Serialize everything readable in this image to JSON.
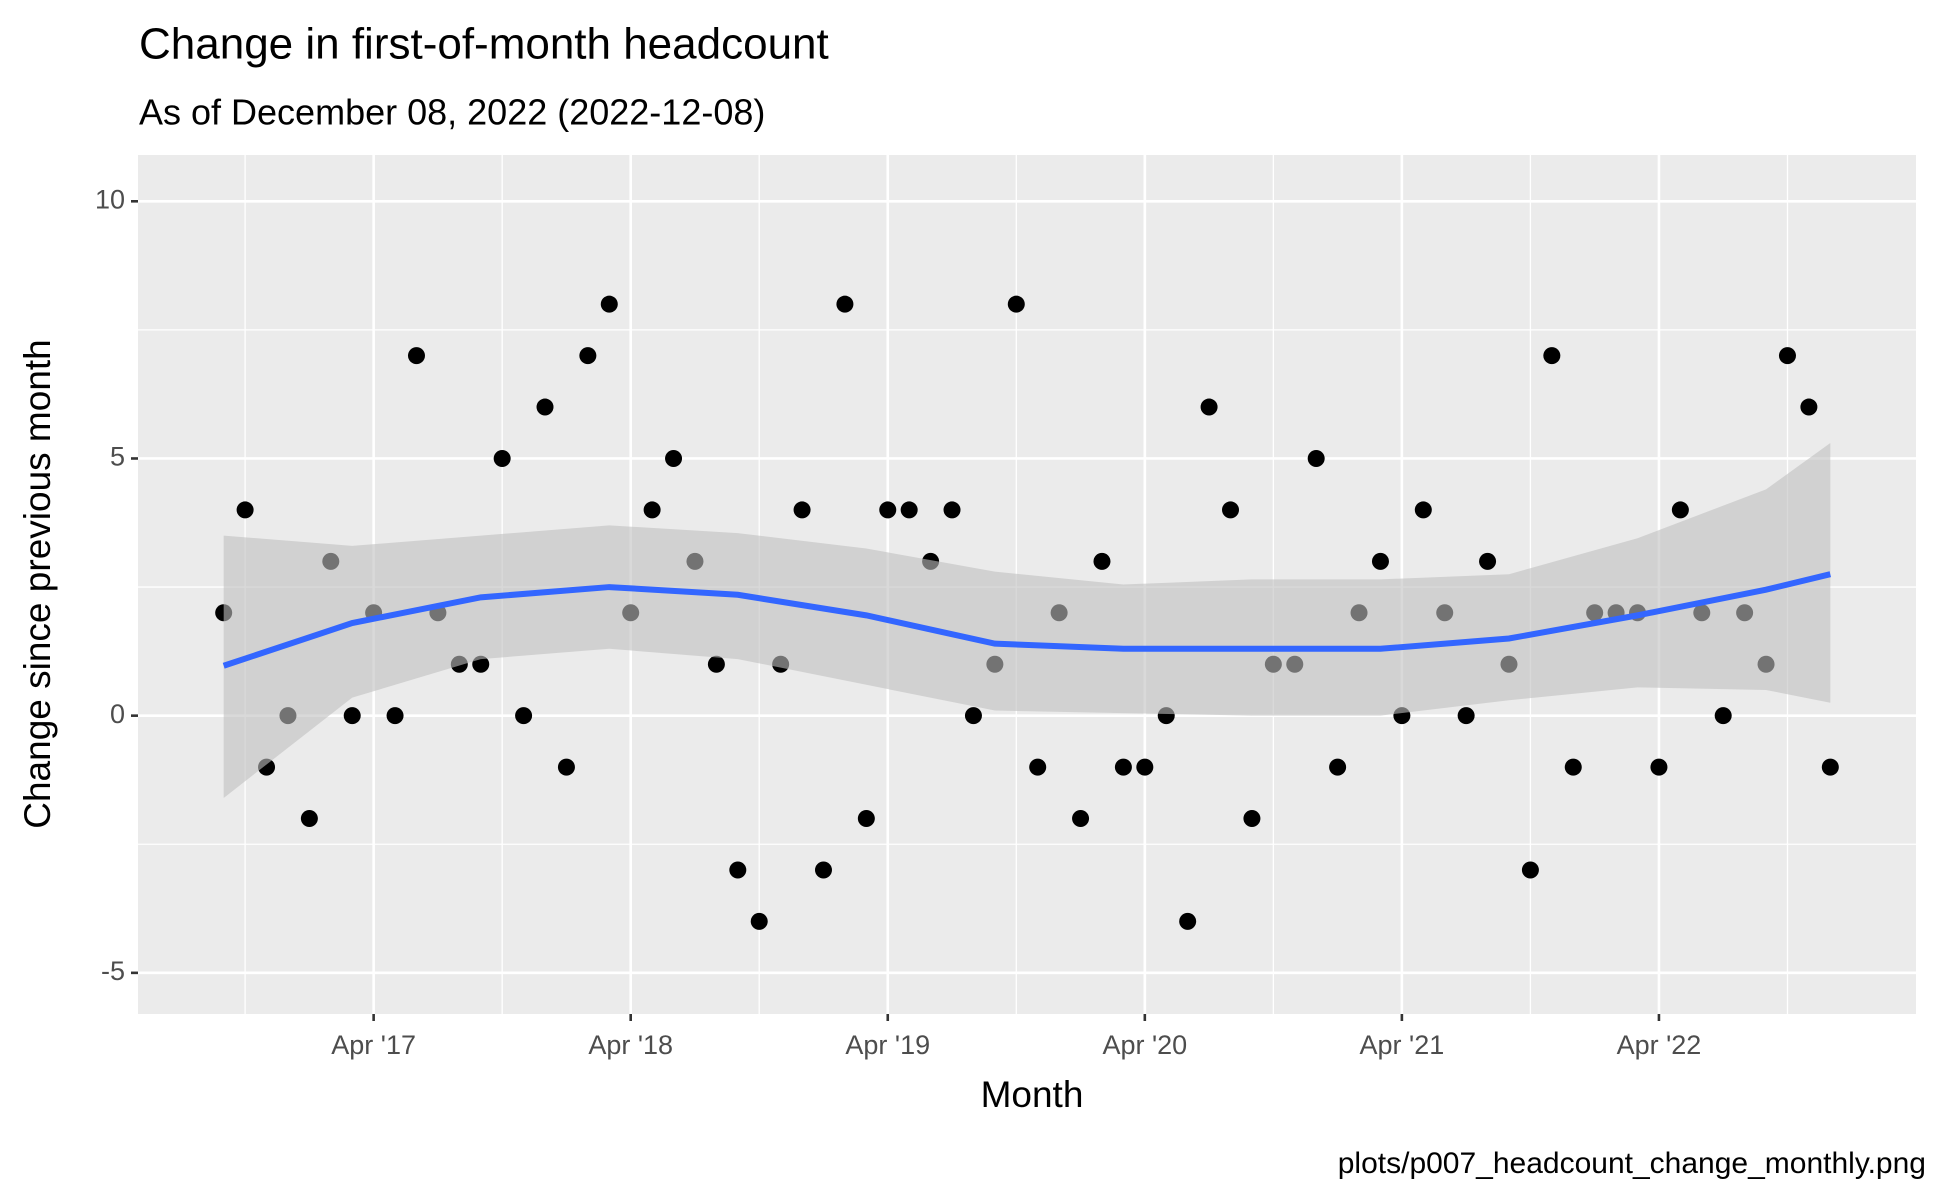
{
  "chart_data": {
    "type": "scatter",
    "title": "Change in first-of-month headcount",
    "subtitle": "As of December 08, 2022 (2022-12-08)",
    "x_label": "Month",
    "y_label": "Change since previous month",
    "caption": "plots/p007_headcount_change_monthly.png",
    "x": [
      "2016-09",
      "2016-10",
      "2016-11",
      "2016-12",
      "2017-01",
      "2017-02",
      "2017-03",
      "2017-04",
      "2017-05",
      "2017-06",
      "2017-07",
      "2017-08",
      "2017-09",
      "2017-10",
      "2017-11",
      "2017-12",
      "2018-01",
      "2018-02",
      "2018-03",
      "2018-04",
      "2018-05",
      "2018-06",
      "2018-07",
      "2018-08",
      "2018-09",
      "2018-10",
      "2018-11",
      "2018-12",
      "2019-01",
      "2019-02",
      "2019-03",
      "2019-04",
      "2019-05",
      "2019-06",
      "2019-07",
      "2019-08",
      "2019-09",
      "2019-10",
      "2019-11",
      "2019-12",
      "2020-01",
      "2020-02",
      "2020-03",
      "2020-04",
      "2020-05",
      "2020-06",
      "2020-07",
      "2020-08",
      "2020-09",
      "2020-10",
      "2020-11",
      "2020-12",
      "2021-01",
      "2021-02",
      "2021-03",
      "2021-04",
      "2021-05",
      "2021-06",
      "2021-07",
      "2021-08",
      "2021-09",
      "2021-10",
      "2021-11",
      "2021-12",
      "2022-01",
      "2022-02",
      "2022-03",
      "2022-04",
      "2022-05",
      "2022-06",
      "2022-07",
      "2022-08",
      "2022-09",
      "2022-10",
      "2022-11",
      "2022-12"
    ],
    "values": [
      2,
      4,
      -1,
      0,
      -2,
      3,
      0,
      2,
      0,
      7,
      2,
      1,
      1,
      5,
      0,
      6,
      -1,
      7,
      8,
      2,
      4,
      5,
      3,
      1,
      -3,
      -4,
      1,
      4,
      -3,
      8,
      -2,
      4,
      4,
      3,
      4,
      0,
      1,
      8,
      -1,
      2,
      -2,
      3,
      -1,
      -1,
      0,
      -4,
      6,
      4,
      -2,
      1,
      1,
      5,
      -1,
      2,
      3,
      0,
      4,
      2,
      0,
      3,
      1,
      -3,
      7,
      -1,
      2,
      2,
      2,
      -1,
      4,
      2,
      0,
      2,
      1,
      7,
      6,
      -1
    ],
    "color": "#000000",
    "smooth": {
      "x": [
        "2016-09",
        "2017-03",
        "2017-09",
        "2018-03",
        "2018-09",
        "2019-03",
        "2019-09",
        "2020-03",
        "2020-09",
        "2021-03",
        "2021-09",
        "2022-03",
        "2022-09",
        "2022-12"
      ],
      "values": [
        0.97,
        1.8,
        2.3,
        2.5,
        2.35,
        1.95,
        1.4,
        1.3,
        1.3,
        1.3,
        1.5,
        1.95,
        2.45,
        2.75
      ],
      "lower": [
        -1.6,
        0.35,
        1.1,
        1.3,
        1.1,
        0.6,
        0.1,
        0.05,
        0,
        0,
        0.3,
        0.55,
        0.5,
        0.25
      ],
      "upper": [
        3.5,
        3.3,
        3.5,
        3.7,
        3.55,
        3.25,
        2.8,
        2.55,
        2.65,
        2.65,
        2.75,
        3.45,
        4.4,
        5.3
      ],
      "color": "#3366ff",
      "band_color": "#bfbfbf"
    },
    "xlim": [
      "2016-05",
      "2023-04"
    ],
    "xticks": [
      {
        "value": "2017-04",
        "label": "Apr '17"
      },
      {
        "value": "2018-04",
        "label": "Apr '18"
      },
      {
        "value": "2019-04",
        "label": "Apr '19"
      },
      {
        "value": "2020-04",
        "label": "Apr '20"
      },
      {
        "value": "2021-04",
        "label": "Apr '21"
      },
      {
        "value": "2022-04",
        "label": "Apr '22"
      }
    ],
    "xminor": [
      "2016-10",
      "2017-10",
      "2018-10",
      "2019-10",
      "2020-10",
      "2021-10",
      "2022-10"
    ],
    "ylim": [
      -5.8,
      10.9
    ],
    "yticks": [
      -5,
      0,
      5,
      10
    ],
    "yminor": [
      -2.5,
      2.5,
      7.5
    ],
    "grid": true
  }
}
